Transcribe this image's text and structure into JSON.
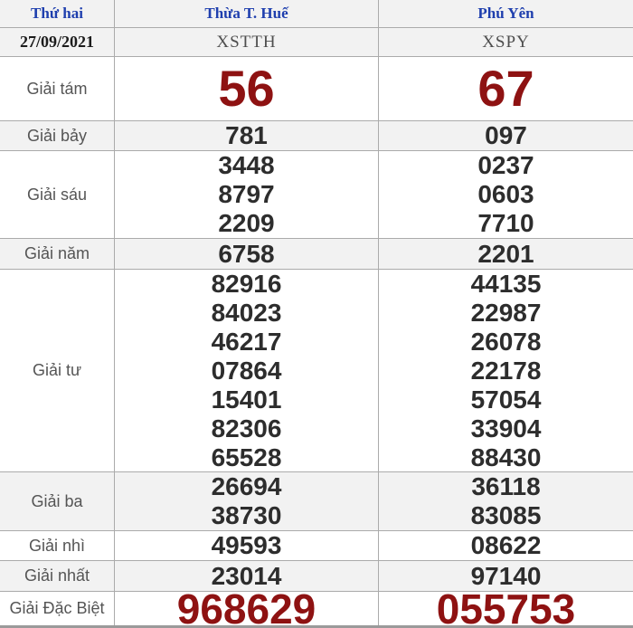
{
  "header": {
    "day_label": "Thứ hai",
    "region1": "Thừa T. Huế",
    "region2": "Phú Yên"
  },
  "draw": {
    "date": "27/09/2021",
    "code1": "XSTTH",
    "code2": "XSPY"
  },
  "prizes": [
    {
      "label": "Giải tám",
      "r1": [
        "56"
      ],
      "r2": [
        "67"
      ]
    },
    {
      "label": "Giải bảy",
      "r1": [
        "781"
      ],
      "r2": [
        "097"
      ]
    },
    {
      "label": "Giải sáu",
      "r1": [
        "3448",
        "8797",
        "2209"
      ],
      "r2": [
        "0237",
        "0603",
        "7710"
      ]
    },
    {
      "label": "Giải năm",
      "r1": [
        "6758"
      ],
      "r2": [
        "2201"
      ]
    },
    {
      "label": "Giải tư",
      "r1": [
        "82916",
        "84023",
        "46217",
        "07864",
        "15401",
        "82306",
        "65528"
      ],
      "r2": [
        "44135",
        "22987",
        "26078",
        "22178",
        "57054",
        "33904",
        "88430"
      ]
    },
    {
      "label": "Giải ba",
      "r1": [
        "26694",
        "38730"
      ],
      "r2": [
        "36118",
        "83085"
      ]
    },
    {
      "label": "Giải nhì",
      "r1": [
        "49593"
      ],
      "r2": [
        "08622"
      ]
    },
    {
      "label": "Giải nhất",
      "r1": [
        "23014"
      ],
      "r2": [
        "97140"
      ]
    },
    {
      "label": "Giải Đặc Biệt",
      "r1": [
        "968629"
      ],
      "r2": [
        "055753"
      ]
    }
  ],
  "colors": {
    "header_text": "#1f3fae",
    "number": "#2d2d2d",
    "big_number": "#8e1212",
    "alt_row_bg": "#f2f2f2",
    "border": "#ababab"
  }
}
